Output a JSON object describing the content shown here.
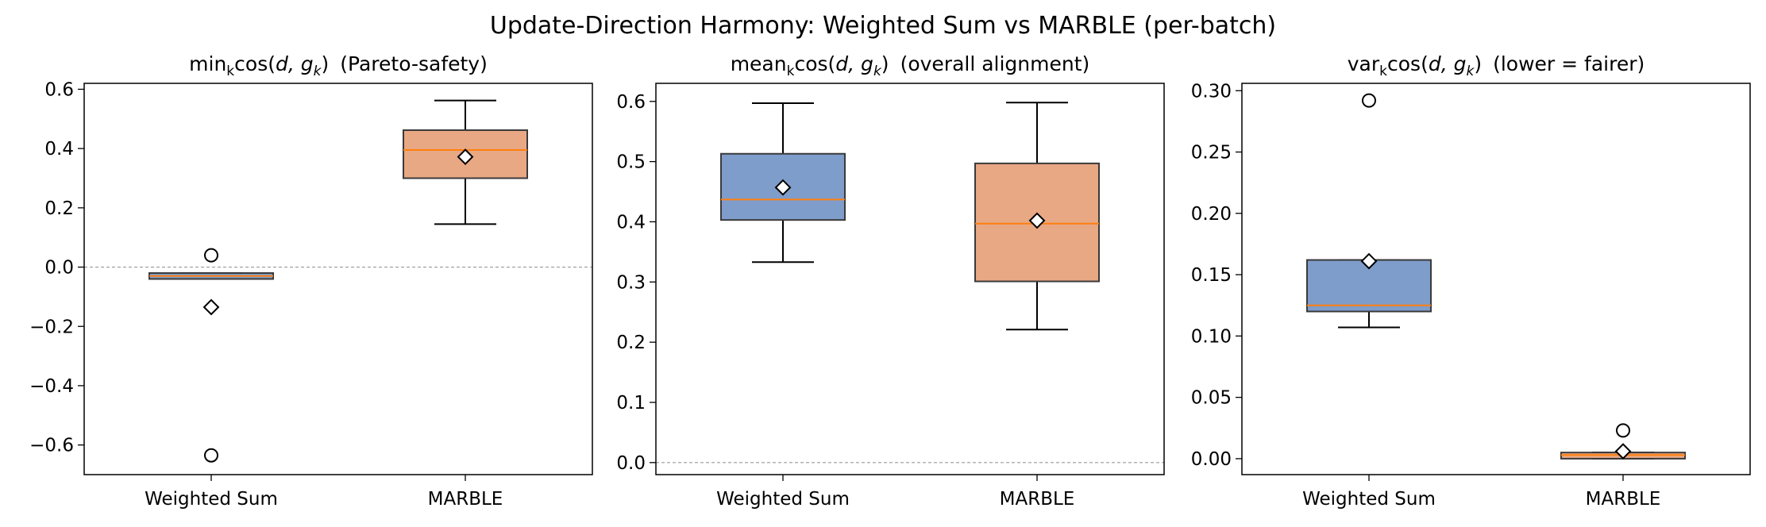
{
  "figure": {
    "title": "Update-Direction Harmony: Weighted Sum vs MARBLE (per-batch)"
  },
  "colors": {
    "weighted_sum_box": "#7f9dcb",
    "marble_box": "#e8a884",
    "median_line": "#ff7f0e",
    "box_edge": "#3a3a3a",
    "reference_line": "#999999"
  },
  "chart_data": [
    {
      "type": "box",
      "title": {
        "prefix": "min",
        "sub": "k",
        "func": "cos(",
        "args": "d, g",
        "args_sub": "k",
        "close": ")",
        "note": "(Pareto-safety)"
      },
      "categories": [
        "Weighted Sum",
        "MARBLE"
      ],
      "ylim": [
        -0.7,
        0.62
      ],
      "yticks": [
        0.6,
        0.4,
        0.2,
        0.0,
        -0.2,
        -0.4,
        -0.6
      ],
      "ytick_labels": [
        "0.6",
        "0.4",
        "0.2",
        "0.0",
        "−0.2",
        "−0.4",
        "−0.6"
      ],
      "reference_line": 0.0,
      "boxes": [
        {
          "name": "Weighted Sum",
          "whislo": -0.04,
          "q1": -0.04,
          "med": -0.03,
          "q3": -0.02,
          "whishi": -0.02,
          "mean": -0.135,
          "fliers": [
            0.04,
            -0.635
          ]
        },
        {
          "name": "MARBLE",
          "whislo": 0.145,
          "q1": 0.3,
          "med": 0.395,
          "q3": 0.462,
          "whishi": 0.562,
          "mean": 0.372,
          "fliers": []
        }
      ]
    },
    {
      "type": "box",
      "title": {
        "prefix": "mean",
        "sub": "k",
        "func": "cos(",
        "args": "d, g",
        "args_sub": "k",
        "close": ")",
        "note": "(overall alignment)"
      },
      "categories": [
        "Weighted Sum",
        "MARBLE"
      ],
      "ylim": [
        -0.02,
        0.63
      ],
      "yticks": [
        0.6,
        0.5,
        0.4,
        0.3,
        0.2,
        0.1,
        0.0
      ],
      "ytick_labels": [
        "0.6",
        "0.5",
        "0.4",
        "0.3",
        "0.2",
        "0.1",
        "0.0"
      ],
      "reference_line": 0.0,
      "boxes": [
        {
          "name": "Weighted Sum",
          "whislo": 0.333,
          "q1": 0.403,
          "med": 0.437,
          "q3": 0.513,
          "whishi": 0.597,
          "mean": 0.457,
          "fliers": []
        },
        {
          "name": "MARBLE",
          "whislo": 0.221,
          "q1": 0.301,
          "med": 0.397,
          "q3": 0.497,
          "whishi": 0.598,
          "mean": 0.402,
          "fliers": []
        }
      ]
    },
    {
      "type": "box",
      "title": {
        "prefix": "var",
        "sub": "k",
        "func": "cos(",
        "args": "d, g",
        "args_sub": "k",
        "close": ")",
        "note": "(lower = fairer)"
      },
      "categories": [
        "Weighted Sum",
        "MARBLE"
      ],
      "ylim": [
        -0.013,
        0.306
      ],
      "yticks": [
        0.3,
        0.25,
        0.2,
        0.15,
        0.1,
        0.05,
        0.0
      ],
      "ytick_labels": [
        "0.30",
        "0.25",
        "0.20",
        "0.15",
        "0.10",
        "0.05",
        "0.00"
      ],
      "reference_line": null,
      "boxes": [
        {
          "name": "Weighted Sum",
          "whislo": 0.107,
          "q1": 0.12,
          "med": 0.125,
          "q3": 0.162,
          "whishi": 0.162,
          "mean": 0.161,
          "fliers": [
            0.292
          ]
        },
        {
          "name": "MARBLE",
          "whislo": 0.0,
          "q1": 0.0,
          "med": 0.003,
          "q3": 0.005,
          "whishi": 0.005,
          "mean": 0.006,
          "fliers": [
            0.023
          ]
        }
      ]
    }
  ]
}
